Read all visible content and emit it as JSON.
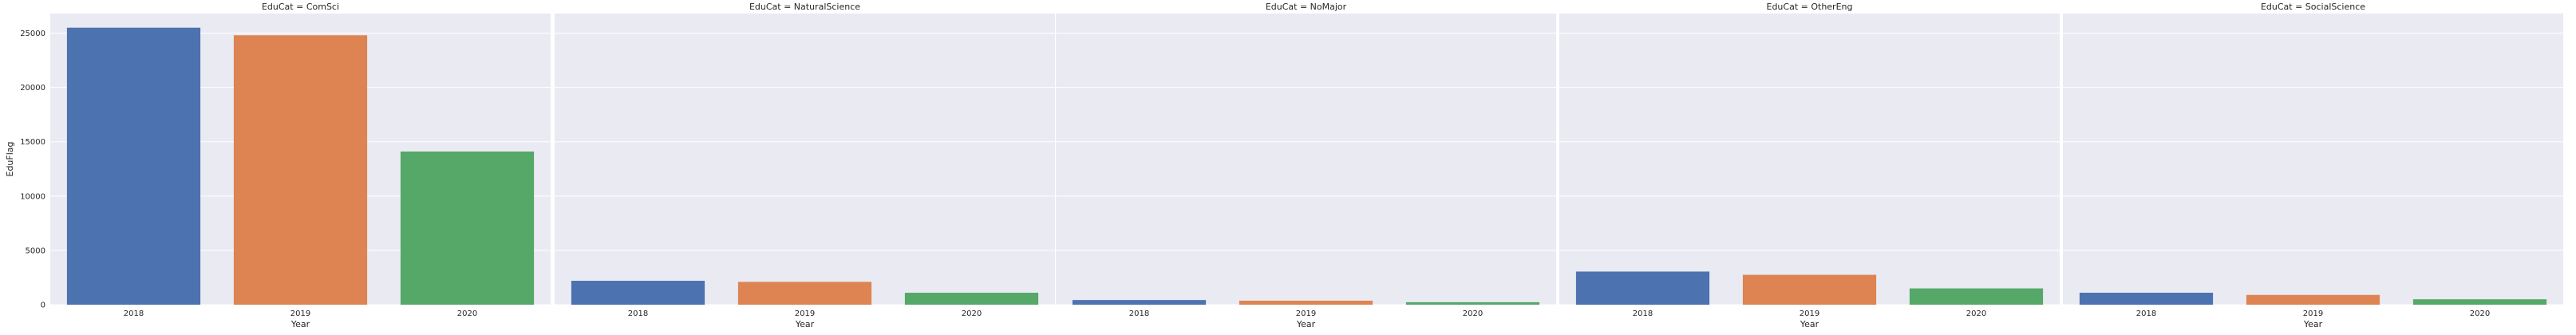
{
  "chart_data": {
    "type": "bar",
    "layout": "facet-row",
    "categories": [
      "2018",
      "2019",
      "2020"
    ],
    "xlabel": "Year",
    "ylabel": "EduFlag",
    "ylim": [
      0,
      26800
    ],
    "yticks": [
      0,
      5000,
      10000,
      15000,
      20000,
      25000
    ],
    "grid": true,
    "colors": [
      "#4c72b0",
      "#dd8452",
      "#55a868"
    ],
    "facets": [
      {
        "title": "EduCat = ComSci",
        "values": [
          25500,
          24800,
          14100
        ]
      },
      {
        "title": "EduCat = NaturalScience",
        "values": [
          2200,
          2100,
          1100
        ]
      },
      {
        "title": "EduCat = NoMajor",
        "values": [
          430,
          370,
          230
        ]
      },
      {
        "title": "EduCat = OtherEng",
        "values": [
          3050,
          2750,
          1500
        ]
      },
      {
        "title": "EduCat = SocialScience",
        "values": [
          1100,
          900,
          500
        ]
      }
    ]
  }
}
